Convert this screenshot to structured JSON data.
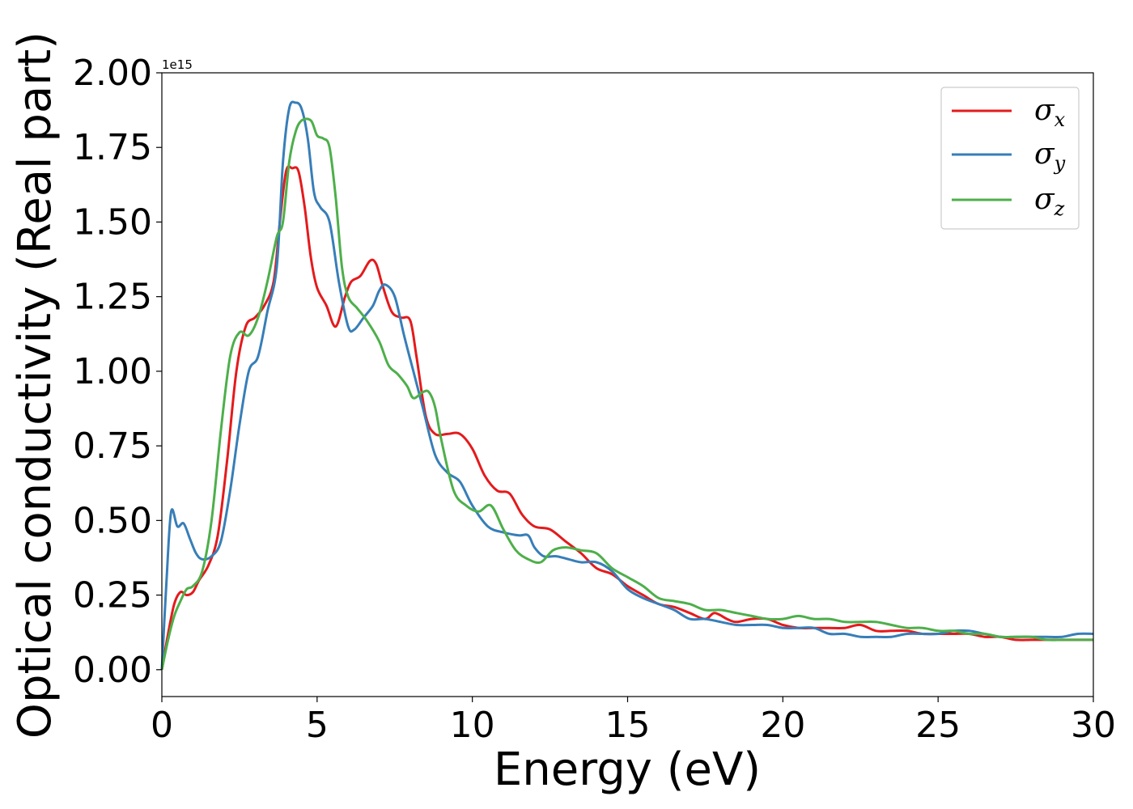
{
  "chart_data": {
    "type": "line",
    "title": "",
    "xlabel": "Energy (eV)",
    "ylabel": "Optical conductivity (Real part)",
    "y_offset_label": "1e15",
    "xlim": [
      0,
      30
    ],
    "ylim": [
      -0.09,
      2.0
    ],
    "xticks": [
      0,
      5,
      10,
      15,
      20,
      25,
      30
    ],
    "xtick_labels": [
      "0",
      "5",
      "10",
      "15",
      "20",
      "25",
      "30"
    ],
    "yticks": [
      0.0,
      0.25,
      0.5,
      0.75,
      1.0,
      1.25,
      1.5,
      1.75,
      2.0
    ],
    "ytick_labels": [
      "0.00",
      "0.25",
      "0.50",
      "0.75",
      "1.00",
      "1.25",
      "1.50",
      "1.75",
      "2.00"
    ],
    "grid": false,
    "legend_position": "top-right",
    "series": [
      {
        "name": "σx",
        "legend_base": "σ",
        "legend_sub": "x",
        "color": "#e41a1c",
        "x": [
          0,
          0.2,
          0.4,
          0.6,
          0.8,
          1.0,
          1.2,
          1.5,
          1.8,
          2.1,
          2.4,
          2.7,
          3.0,
          3.3,
          3.6,
          3.8,
          4.0,
          4.2,
          4.4,
          4.6,
          4.8,
          5.0,
          5.3,
          5.6,
          5.9,
          6.1,
          6.4,
          6.7,
          6.9,
          7.1,
          7.4,
          7.7,
          8.0,
          8.2,
          8.5,
          8.8,
          9.2,
          9.6,
          10.0,
          10.4,
          10.8,
          11.2,
          11.6,
          12.0,
          12.5,
          13.0,
          13.5,
          14.0,
          14.5,
          15.0,
          15.5,
          16.0,
          16.5,
          17.0,
          17.5,
          17.8,
          18.2,
          18.5,
          19.0,
          19.5,
          20.0,
          20.5,
          21.0,
          21.5,
          22.0,
          22.5,
          23.0,
          23.5,
          24.0,
          24.5,
          25.0,
          25.5,
          26.0,
          26.5,
          27.0,
          27.5,
          28.0,
          28.5,
          29.0,
          29.5,
          30.0
        ],
        "y": [
          0.0,
          0.12,
          0.22,
          0.26,
          0.25,
          0.26,
          0.3,
          0.35,
          0.45,
          0.7,
          1.0,
          1.15,
          1.18,
          1.22,
          1.3,
          1.5,
          1.67,
          1.68,
          1.67,
          1.55,
          1.38,
          1.28,
          1.22,
          1.15,
          1.25,
          1.3,
          1.32,
          1.37,
          1.36,
          1.29,
          1.2,
          1.18,
          1.17,
          1.05,
          0.85,
          0.79,
          0.79,
          0.79,
          0.74,
          0.65,
          0.6,
          0.59,
          0.52,
          0.48,
          0.47,
          0.43,
          0.39,
          0.34,
          0.32,
          0.28,
          0.25,
          0.22,
          0.21,
          0.19,
          0.17,
          0.19,
          0.17,
          0.16,
          0.17,
          0.17,
          0.15,
          0.14,
          0.14,
          0.14,
          0.14,
          0.15,
          0.13,
          0.13,
          0.13,
          0.12,
          0.12,
          0.12,
          0.12,
          0.11,
          0.11,
          0.1,
          0.1,
          0.1,
          0.1,
          0.1,
          0.1
        ]
      },
      {
        "name": "σy",
        "legend_base": "σ",
        "legend_sub": "y",
        "color": "#377eb8",
        "x": [
          0,
          0.15,
          0.3,
          0.5,
          0.7,
          0.9,
          1.1,
          1.3,
          1.6,
          1.9,
          2.2,
          2.5,
          2.8,
          3.1,
          3.4,
          3.7,
          3.9,
          4.1,
          4.3,
          4.5,
          4.7,
          4.9,
          5.1,
          5.4,
          5.7,
          6.0,
          6.2,
          6.5,
          6.8,
          7.0,
          7.2,
          7.5,
          7.8,
          8.1,
          8.4,
          8.8,
          9.2,
          9.6,
          10.0,
          10.5,
          11.0,
          11.5,
          11.8,
          12.0,
          12.3,
          12.7,
          13.1,
          13.5,
          14.0,
          14.5,
          15.0,
          15.5,
          16.0,
          16.5,
          17.0,
          17.5,
          18.0,
          18.5,
          19.0,
          19.5,
          20.0,
          20.5,
          21.0,
          21.5,
          22.0,
          22.5,
          23.0,
          23.5,
          24.0,
          24.5,
          25.0,
          25.5,
          26.0,
          26.5,
          27.0,
          27.5,
          28.0,
          28.5,
          29.0,
          29.5,
          30.0
        ],
        "y": [
          0.0,
          0.3,
          0.53,
          0.48,
          0.49,
          0.44,
          0.39,
          0.37,
          0.38,
          0.43,
          0.6,
          0.82,
          1.0,
          1.05,
          1.2,
          1.35,
          1.7,
          1.88,
          1.9,
          1.88,
          1.78,
          1.6,
          1.55,
          1.5,
          1.3,
          1.15,
          1.14,
          1.18,
          1.22,
          1.27,
          1.29,
          1.25,
          1.12,
          1.0,
          0.88,
          0.72,
          0.66,
          0.63,
          0.55,
          0.48,
          0.46,
          0.45,
          0.45,
          0.41,
          0.38,
          0.38,
          0.37,
          0.36,
          0.36,
          0.33,
          0.27,
          0.24,
          0.22,
          0.2,
          0.17,
          0.17,
          0.16,
          0.15,
          0.15,
          0.15,
          0.14,
          0.14,
          0.14,
          0.12,
          0.12,
          0.11,
          0.11,
          0.11,
          0.12,
          0.12,
          0.12,
          0.13,
          0.13,
          0.12,
          0.11,
          0.11,
          0.11,
          0.11,
          0.11,
          0.12,
          0.12
        ]
      },
      {
        "name": "σz",
        "legend_base": "σ",
        "legend_sub": "z",
        "color": "#4daf4a",
        "x": [
          0,
          0.2,
          0.4,
          0.6,
          0.8,
          1.0,
          1.3,
          1.6,
          1.9,
          2.2,
          2.5,
          2.8,
          3.1,
          3.4,
          3.7,
          3.9,
          4.1,
          4.3,
          4.5,
          4.8,
          5.0,
          5.2,
          5.4,
          5.6,
          5.8,
          6.0,
          6.3,
          6.6,
          7.0,
          7.3,
          7.6,
          7.9,
          8.1,
          8.4,
          8.6,
          8.8,
          9.0,
          9.4,
          9.8,
          10.2,
          10.6,
          11.0,
          11.4,
          11.8,
          12.2,
          12.6,
          13.0,
          13.5,
          14.0,
          14.5,
          15.0,
          15.5,
          16.0,
          16.5,
          17.0,
          17.5,
          18.0,
          18.5,
          19.0,
          19.5,
          20.0,
          20.5,
          21.0,
          21.5,
          22.0,
          22.5,
          23.0,
          23.5,
          24.0,
          24.5,
          25.0,
          25.5,
          26.0,
          26.5,
          27.0,
          27.5,
          28.0,
          28.5,
          29.0,
          29.5,
          30.0
        ],
        "y": [
          0.0,
          0.1,
          0.18,
          0.23,
          0.27,
          0.28,
          0.33,
          0.5,
          0.8,
          1.05,
          1.13,
          1.12,
          1.18,
          1.3,
          1.45,
          1.5,
          1.7,
          1.8,
          1.84,
          1.84,
          1.79,
          1.78,
          1.75,
          1.58,
          1.35,
          1.25,
          1.21,
          1.17,
          1.1,
          1.02,
          0.99,
          0.95,
          0.91,
          0.93,
          0.93,
          0.88,
          0.77,
          0.6,
          0.55,
          0.53,
          0.55,
          0.47,
          0.4,
          0.37,
          0.36,
          0.4,
          0.41,
          0.4,
          0.39,
          0.34,
          0.31,
          0.28,
          0.24,
          0.23,
          0.22,
          0.2,
          0.2,
          0.19,
          0.18,
          0.17,
          0.17,
          0.18,
          0.17,
          0.17,
          0.16,
          0.16,
          0.16,
          0.15,
          0.14,
          0.14,
          0.13,
          0.13,
          0.12,
          0.12,
          0.11,
          0.11,
          0.11,
          0.1,
          0.1,
          0.1,
          0.1
        ]
      }
    ]
  }
}
